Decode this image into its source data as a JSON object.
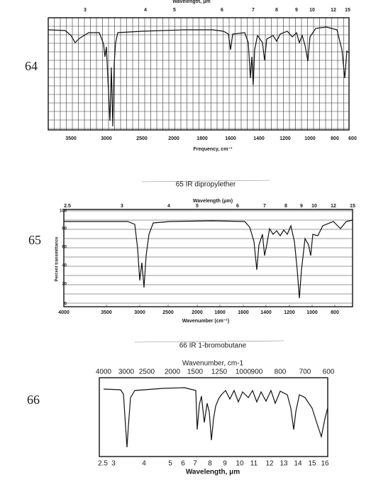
{
  "spectra": [
    {
      "number": "64",
      "top_label": "Wavelength, μm",
      "top_ticks": [
        "3",
        "4",
        "5",
        "6",
        "7",
        "8",
        "9",
        "10",
        "12",
        "15"
      ],
      "bottom_ticks": [
        "3500",
        "3000",
        "2500",
        "2000",
        "1800",
        "1600",
        "1400",
        "1200",
        "1000",
        "800",
        "600"
      ],
      "x_label": "Frequency, cm⁻¹"
    },
    {
      "number": "65",
      "caption": "65 IR dipropylether",
      "top_label": "Wavelength (μm)",
      "top_ticks": [
        "2.5",
        "3",
        "4",
        "5",
        "6",
        "7",
        "8",
        "9",
        "10",
        "12",
        "15"
      ],
      "y_label": "Percent transmittance",
      "y_ticks": [
        "100",
        "80",
        "60",
        "40",
        "20",
        "0"
      ],
      "bottom_ticks": [
        "4000",
        "3500",
        "3000",
        "2500",
        "2000",
        "1800",
        "1600",
        "1400",
        "1200",
        "1000",
        "800"
      ],
      "x_label": "Wavenumber (cm⁻¹)"
    },
    {
      "number": "66",
      "caption": "66 IR 1-bromobutane",
      "top_label": "Wavenumber, cm-1",
      "top_ticks": [
        "4000",
        "3000",
        "2500",
        "2000",
        "1500",
        "1250",
        "1000",
        "900",
        "800",
        "700",
        "600"
      ],
      "bottom_ticks": [
        "2.5",
        "3",
        "4",
        "5",
        "6",
        "7",
        "8",
        "9",
        "10",
        "11",
        "12",
        "13",
        "14",
        "15",
        "16"
      ],
      "x_label": "Wavelength, μm"
    }
  ]
}
